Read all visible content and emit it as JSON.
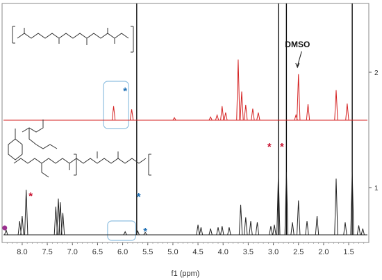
{
  "chart_data": {
    "type": "line",
    "xlabel": "f1 (ppm)",
    "x_reversed": true,
    "xlim": [
      8.4,
      1.1
    ],
    "x_ticks": [
      "8.0",
      "7.5",
      "7.0",
      "6.5",
      "6.0",
      "5.5",
      "5.0",
      "4.5",
      "4.0",
      "3.5",
      "3.0",
      "2.5",
      "2.0",
      "1.5"
    ],
    "right_axis_labels": [
      "2",
      "1"
    ],
    "colors": {
      "series_1": "#d42020",
      "series_2": "#222222",
      "red_star": "#c8102e",
      "blue_star": "#1f6fb4",
      "highlight_box": "#8fbfe0",
      "dot": "#9b2f8f"
    },
    "annotations": [
      {
        "text": "DMSO",
        "x": 2.52,
        "series": 2
      },
      {
        "text": "*",
        "color": "red_star",
        "x": 3.08,
        "series": 1
      },
      {
        "text": "*",
        "color": "red_star",
        "x": 2.83,
        "series": 1
      },
      {
        "text": "*",
        "color": "red_star",
        "x": 7.83,
        "series": 2
      },
      {
        "text": "*",
        "color": "blue_star",
        "x": 5.68,
        "series": 2
      },
      {
        "text": "*",
        "color": "blue_star",
        "x": 5.68,
        "series": 1
      },
      {
        "text": "*",
        "color": "blue_star",
        "x": 5.95,
        "series": 2
      },
      {
        "text": "*",
        "color": "blue_star",
        "x": 5.55,
        "series": 2
      }
    ],
    "highlight_boxes": [
      {
        "series": 2,
        "x_range": [
          6.38,
          5.88
        ]
      },
      {
        "series": 1,
        "x_range": [
          6.3,
          5.74
        ]
      }
    ],
    "series": [
      {
        "trace": 2,
        "color": "#d42020",
        "peaks": [
          {
            "x": 6.18,
            "h": 0.22
          },
          {
            "x": 5.82,
            "h": 0.17
          },
          {
            "x": 4.97,
            "h": 0.04
          },
          {
            "x": 4.25,
            "h": 0.05
          },
          {
            "x": 4.12,
            "h": 0.08
          },
          {
            "x": 4.02,
            "h": 0.22
          },
          {
            "x": 3.95,
            "h": 0.12
          },
          {
            "x": 3.7,
            "h": 0.95
          },
          {
            "x": 3.63,
            "h": 0.45
          },
          {
            "x": 3.55,
            "h": 0.24
          },
          {
            "x": 3.41,
            "h": 0.18
          },
          {
            "x": 3.3,
            "h": 0.12
          },
          {
            "x": 2.55,
            "h": 0.08
          },
          {
            "x": 2.5,
            "h": 0.72
          },
          {
            "x": 2.31,
            "h": 0.25
          },
          {
            "x": 1.75,
            "h": 0.47
          },
          {
            "x": 1.53,
            "h": 0.26
          }
        ]
      },
      {
        "trace": 1,
        "color": "#222222",
        "peaks": [
          {
            "x": 8.32,
            "h": 0.08
          },
          {
            "x": 8.05,
            "h": 0.22
          },
          {
            "x": 8.0,
            "h": 0.3
          },
          {
            "x": 7.92,
            "h": 0.72
          },
          {
            "x": 7.33,
            "h": 0.45
          },
          {
            "x": 7.28,
            "h": 0.58
          },
          {
            "x": 7.24,
            "h": 0.52
          },
          {
            "x": 7.19,
            "h": 0.35
          },
          {
            "x": 5.95,
            "h": 0.05
          },
          {
            "x": 5.7,
            "h": 0.06
          },
          {
            "x": 5.55,
            "h": 0.04
          },
          {
            "x": 4.5,
            "h": 0.16
          },
          {
            "x": 4.44,
            "h": 0.12
          },
          {
            "x": 4.25,
            "h": 0.1
          },
          {
            "x": 4.1,
            "h": 0.12
          },
          {
            "x": 4.02,
            "h": 0.14
          },
          {
            "x": 3.88,
            "h": 0.12
          },
          {
            "x": 3.65,
            "h": 0.48
          },
          {
            "x": 3.55,
            "h": 0.28
          },
          {
            "x": 3.45,
            "h": 0.22
          },
          {
            "x": 3.32,
            "h": 0.2
          },
          {
            "x": 3.05,
            "h": 0.14
          },
          {
            "x": 2.98,
            "h": 0.16
          },
          {
            "x": 2.9,
            "h": 1.0
          },
          {
            "x": 2.74,
            "h": 1.0
          },
          {
            "x": 2.62,
            "h": 0.2
          },
          {
            "x": 2.5,
            "h": 0.55
          },
          {
            "x": 2.33,
            "h": 0.22
          },
          {
            "x": 2.13,
            "h": 0.3
          },
          {
            "x": 1.75,
            "h": 0.9
          },
          {
            "x": 1.57,
            "h": 0.2
          },
          {
            "x": 1.43,
            "h": 1.0
          },
          {
            "x": 1.3,
            "h": 0.15
          },
          {
            "x": 1.22,
            "h": 0.1
          }
        ]
      }
    ],
    "full_height_lines_x": [
      5.72,
      2.9,
      2.74,
      1.43
    ]
  }
}
